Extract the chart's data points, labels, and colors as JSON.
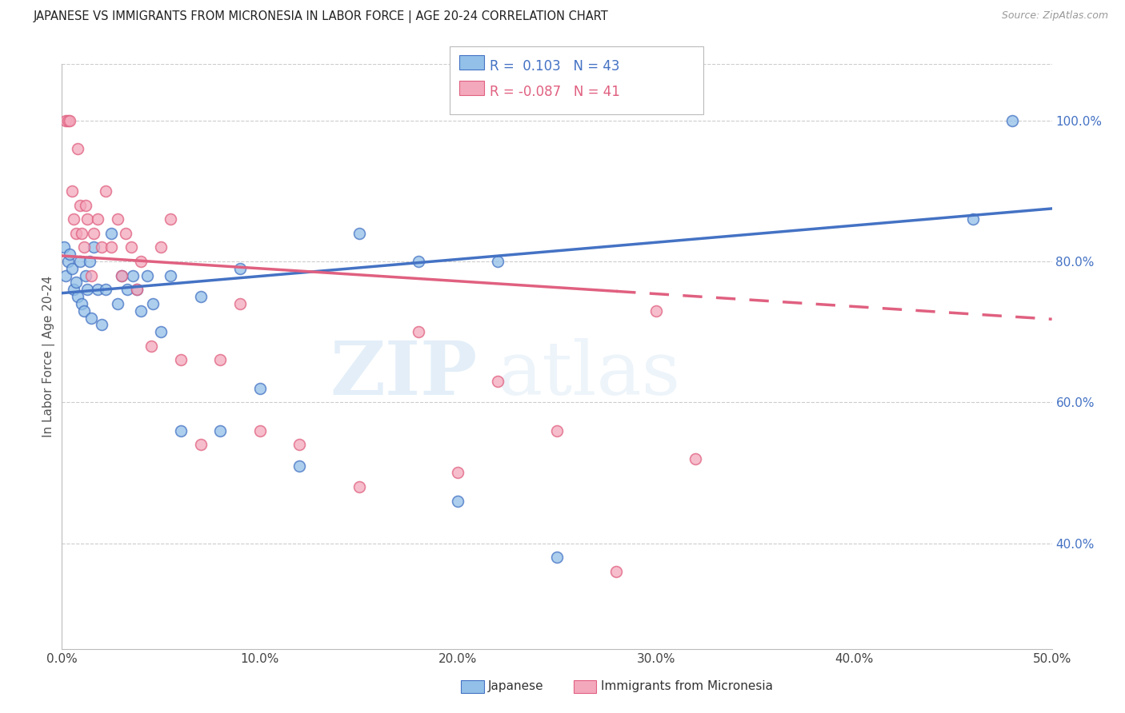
{
  "title": "JAPANESE VS IMMIGRANTS FROM MICRONESIA IN LABOR FORCE | AGE 20-24 CORRELATION CHART",
  "source": "Source: ZipAtlas.com",
  "ylabel": "In Labor Force | Age 20-24",
  "xlabel_ticks": [
    "0.0%",
    "10.0%",
    "20.0%",
    "30.0%",
    "40.0%",
    "50.0%"
  ],
  "xlabel_vals": [
    0.0,
    0.1,
    0.2,
    0.3,
    0.4,
    0.5
  ],
  "ylabel_ticks": [
    "40.0%",
    "60.0%",
    "80.0%",
    "100.0%"
  ],
  "ylabel_vals": [
    0.4,
    0.6,
    0.8,
    1.0
  ],
  "xlim": [
    0.0,
    0.5
  ],
  "ylim": [
    0.25,
    1.08
  ],
  "legend_japanese": "Japanese",
  "legend_micronesia": "Immigrants from Micronesia",
  "r_japanese": "0.103",
  "n_japanese": "43",
  "r_micronesia": "-0.087",
  "n_micronesia": "41",
  "color_japanese": "#92c0e8",
  "color_micronesia": "#f4a8bc",
  "color_line_japanese": "#4472c4",
  "color_line_micronesia": "#e06080",
  "watermark_zip": "ZIP",
  "watermark_atlas": "atlas",
  "japanese_x": [
    0.001,
    0.002,
    0.003,
    0.004,
    0.005,
    0.006,
    0.007,
    0.008,
    0.009,
    0.01,
    0.011,
    0.012,
    0.013,
    0.014,
    0.015,
    0.016,
    0.018,
    0.02,
    0.022,
    0.025,
    0.028,
    0.03,
    0.033,
    0.036,
    0.038,
    0.04,
    0.043,
    0.046,
    0.05,
    0.055,
    0.06,
    0.07,
    0.08,
    0.09,
    0.1,
    0.12,
    0.15,
    0.18,
    0.2,
    0.22,
    0.25,
    0.46,
    0.48
  ],
  "japanese_y": [
    0.82,
    0.78,
    0.8,
    0.81,
    0.79,
    0.76,
    0.77,
    0.75,
    0.8,
    0.74,
    0.73,
    0.78,
    0.76,
    0.8,
    0.72,
    0.82,
    0.76,
    0.71,
    0.76,
    0.84,
    0.74,
    0.78,
    0.76,
    0.78,
    0.76,
    0.73,
    0.78,
    0.74,
    0.7,
    0.78,
    0.56,
    0.75,
    0.56,
    0.79,
    0.62,
    0.51,
    0.84,
    0.8,
    0.46,
    0.8,
    0.38,
    0.86,
    1.0
  ],
  "micronesia_x": [
    0.002,
    0.003,
    0.004,
    0.005,
    0.006,
    0.007,
    0.008,
    0.009,
    0.01,
    0.011,
    0.012,
    0.013,
    0.015,
    0.016,
    0.018,
    0.02,
    0.022,
    0.025,
    0.028,
    0.03,
    0.032,
    0.035,
    0.038,
    0.04,
    0.045,
    0.05,
    0.055,
    0.06,
    0.07,
    0.08,
    0.09,
    0.1,
    0.12,
    0.15,
    0.18,
    0.2,
    0.22,
    0.25,
    0.28,
    0.3,
    0.32
  ],
  "micronesia_y": [
    1.0,
    1.0,
    1.0,
    0.9,
    0.86,
    0.84,
    0.96,
    0.88,
    0.84,
    0.82,
    0.88,
    0.86,
    0.78,
    0.84,
    0.86,
    0.82,
    0.9,
    0.82,
    0.86,
    0.78,
    0.84,
    0.82,
    0.76,
    0.8,
    0.68,
    0.82,
    0.86,
    0.66,
    0.54,
    0.66,
    0.74,
    0.56,
    0.54,
    0.48,
    0.7,
    0.5,
    0.63,
    0.56,
    0.36,
    0.73,
    0.52
  ],
  "line_j_x0": 0.0,
  "line_j_y0": 0.755,
  "line_j_x1": 0.5,
  "line_j_y1": 0.875,
  "line_m_x0": 0.0,
  "line_m_y0": 0.808,
  "line_m_x1": 0.5,
  "line_m_y1": 0.718,
  "line_m_solid_end": 0.28
}
